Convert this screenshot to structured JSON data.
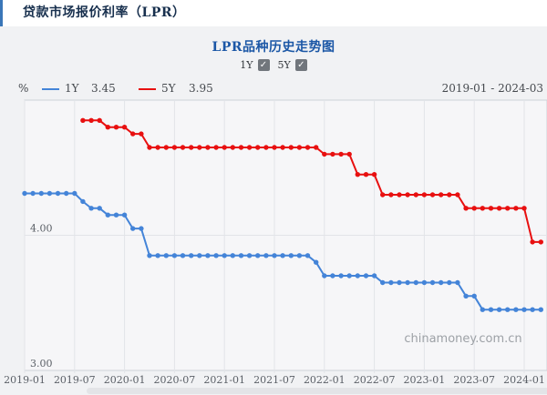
{
  "header": {
    "title": "贷款市场报价利率（LPR）"
  },
  "chart": {
    "title": "LPR品种历史走势图",
    "range_label": "2019-01 - 2024-03",
    "watermark": "chinamoney.com.cn",
    "check_glyph": "✓",
    "controls": [
      {
        "label": "1Y",
        "checked": true
      },
      {
        "label": "5Y",
        "checked": true
      }
    ],
    "legend": [
      {
        "label": "1Y",
        "value": "3.45",
        "color": "#4484d8"
      },
      {
        "label": "5Y",
        "value": "3.95",
        "color": "#e81010"
      }
    ]
  },
  "colors": {
    "accent_bar": "#3a76b8",
    "header_title": "#18304e",
    "chart_title": "#1b57a6",
    "series_1y": "#4484d8",
    "series_5y": "#e81010",
    "grid": "#e2e4e8",
    "plot_border": "#cdd2d7",
    "plot_bg": "#f6f6f8",
    "panel_bg": "#f1f2f4",
    "axis_text": "#5a5f66",
    "watermark": "#9da1a6"
  },
  "chart_data": {
    "type": "line",
    "title": "LPR品种历史走势图",
    "xlabel": "",
    "ylabel": "%",
    "ylim": [
      3.0,
      5.0
    ],
    "x_range": [
      "2019-01",
      "2024-03"
    ],
    "x_tick_labels": [
      "2019-01",
      "2019-07",
      "2020-01",
      "2020-07",
      "2021-01",
      "2021-07",
      "2022-01",
      "2022-07",
      "2023-01",
      "2023-07",
      "2024-01"
    ],
    "y_ticks": [
      {
        "value": 4.0,
        "label": "4.00"
      },
      {
        "value": 3.0,
        "label": "3.00"
      }
    ],
    "grid": "vertical lines every 6 months; horizontal lines at 3.00, 4.00, 5.00",
    "legend_position": "top-left",
    "marker": "circle",
    "months": [
      "2019-01",
      "2019-02",
      "2019-03",
      "2019-04",
      "2019-05",
      "2019-06",
      "2019-07",
      "2019-08",
      "2019-09",
      "2019-10",
      "2019-11",
      "2019-12",
      "2020-01",
      "2020-02",
      "2020-03",
      "2020-04",
      "2020-05",
      "2020-06",
      "2020-07",
      "2020-08",
      "2020-09",
      "2020-10",
      "2020-11",
      "2020-12",
      "2021-01",
      "2021-02",
      "2021-03",
      "2021-04",
      "2021-05",
      "2021-06",
      "2021-07",
      "2021-08",
      "2021-09",
      "2021-10",
      "2021-11",
      "2021-12",
      "2022-01",
      "2022-02",
      "2022-03",
      "2022-04",
      "2022-05",
      "2022-06",
      "2022-07",
      "2022-08",
      "2022-09",
      "2022-10",
      "2022-11",
      "2022-12",
      "2023-01",
      "2023-02",
      "2023-03",
      "2023-04",
      "2023-05",
      "2023-06",
      "2023-07",
      "2023-08",
      "2023-09",
      "2023-10",
      "2023-11",
      "2023-12",
      "2024-01",
      "2024-02",
      "2024-03"
    ],
    "series": [
      {
        "name": "1Y",
        "color": "#4484d8",
        "latest_value": 3.45,
        "values": [
          4.31,
          4.31,
          4.31,
          4.31,
          4.31,
          4.31,
          4.31,
          4.25,
          4.2,
          4.2,
          4.15,
          4.15,
          4.15,
          4.05,
          4.05,
          3.85,
          3.85,
          3.85,
          3.85,
          3.85,
          3.85,
          3.85,
          3.85,
          3.85,
          3.85,
          3.85,
          3.85,
          3.85,
          3.85,
          3.85,
          3.85,
          3.85,
          3.85,
          3.85,
          3.85,
          3.8,
          3.7,
          3.7,
          3.7,
          3.7,
          3.7,
          3.7,
          3.7,
          3.65,
          3.65,
          3.65,
          3.65,
          3.65,
          3.65,
          3.65,
          3.65,
          3.65,
          3.65,
          3.55,
          3.55,
          3.45,
          3.45,
          3.45,
          3.45,
          3.45,
          3.45,
          3.45,
          3.45
        ]
      },
      {
        "name": "5Y",
        "color": "#e81010",
        "latest_value": 3.95,
        "values": [
          null,
          null,
          null,
          null,
          null,
          null,
          null,
          4.85,
          4.85,
          4.85,
          4.8,
          4.8,
          4.8,
          4.75,
          4.75,
          4.65,
          4.65,
          4.65,
          4.65,
          4.65,
          4.65,
          4.65,
          4.65,
          4.65,
          4.65,
          4.65,
          4.65,
          4.65,
          4.65,
          4.65,
          4.65,
          4.65,
          4.65,
          4.65,
          4.65,
          4.65,
          4.6,
          4.6,
          4.6,
          4.6,
          4.45,
          4.45,
          4.45,
          4.3,
          4.3,
          4.3,
          4.3,
          4.3,
          4.3,
          4.3,
          4.3,
          4.3,
          4.3,
          4.2,
          4.2,
          4.2,
          4.2,
          4.2,
          4.2,
          4.2,
          4.2,
          3.95,
          3.95
        ]
      }
    ]
  }
}
